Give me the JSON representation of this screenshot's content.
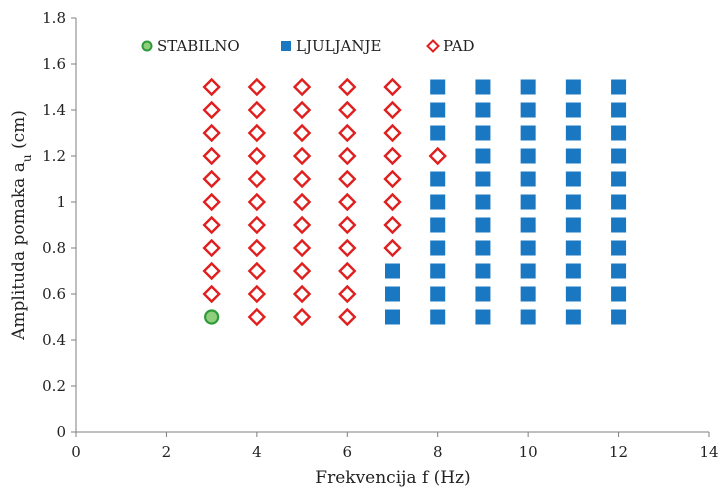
{
  "colors": {
    "stabilno": "#2e9a3a",
    "stabilno_fill": "#8fcf7c",
    "ljuljanje": "#1a78c2",
    "pad": "#e01f1f",
    "axis": "#7f7f7f",
    "text": "#222222"
  },
  "chart_data": {
    "type": "scatter",
    "title": "",
    "xlabel": "Frekvencija f (Hz)",
    "ylabel_main": "Amplituda pomaka a",
    "ylabel_sub": "u",
    "ylabel_units": " (cm)",
    "xlim": [
      0,
      14
    ],
    "ylim": [
      0,
      1.8
    ],
    "x_ticks": [
      0,
      2,
      4,
      6,
      8,
      10,
      12,
      14
    ],
    "x_tick_labels": [
      "0",
      "2",
      "4",
      "6",
      "8",
      "10",
      "12",
      "14"
    ],
    "y_ticks": [
      0,
      0.2,
      0.4,
      0.6,
      0.8,
      1.0,
      1.2,
      1.4,
      1.6,
      1.8
    ],
    "y_tick_labels": [
      "0",
      "0.2",
      "0.4",
      "0.6",
      "0.8",
      "1",
      "1.2",
      "1.4",
      "1.6",
      "1.8"
    ],
    "grid": false,
    "legend_position": "top",
    "series": [
      {
        "name": "STABILNO",
        "marker": "circle",
        "points": [
          [
            3,
            0.5
          ]
        ]
      },
      {
        "name": "LJULJANJE",
        "marker": "square",
        "points": [
          [
            7,
            0.5
          ],
          [
            7,
            0.6
          ],
          [
            7,
            0.7
          ],
          [
            8,
            0.5
          ],
          [
            8,
            0.6
          ],
          [
            8,
            0.7
          ],
          [
            8,
            0.8
          ],
          [
            8,
            0.9
          ],
          [
            8,
            1.0
          ],
          [
            8,
            1.1
          ],
          [
            8,
            1.3
          ],
          [
            8,
            1.4
          ],
          [
            8,
            1.5
          ],
          [
            9,
            0.5
          ],
          [
            9,
            0.6
          ],
          [
            9,
            0.7
          ],
          [
            9,
            0.8
          ],
          [
            9,
            0.9
          ],
          [
            9,
            1.0
          ],
          [
            9,
            1.1
          ],
          [
            9,
            1.2
          ],
          [
            9,
            1.3
          ],
          [
            9,
            1.4
          ],
          [
            9,
            1.5
          ],
          [
            10,
            0.5
          ],
          [
            10,
            0.6
          ],
          [
            10,
            0.7
          ],
          [
            10,
            0.8
          ],
          [
            10,
            0.9
          ],
          [
            10,
            1.0
          ],
          [
            10,
            1.1
          ],
          [
            10,
            1.2
          ],
          [
            10,
            1.3
          ],
          [
            10,
            1.4
          ],
          [
            10,
            1.5
          ],
          [
            11,
            0.5
          ],
          [
            11,
            0.6
          ],
          [
            11,
            0.7
          ],
          [
            11,
            0.8
          ],
          [
            11,
            0.9
          ],
          [
            11,
            1.0
          ],
          [
            11,
            1.1
          ],
          [
            11,
            1.2
          ],
          [
            11,
            1.3
          ],
          [
            11,
            1.4
          ],
          [
            11,
            1.5
          ],
          [
            12,
            0.5
          ],
          [
            12,
            0.6
          ],
          [
            12,
            0.7
          ],
          [
            12,
            0.8
          ],
          [
            12,
            0.9
          ],
          [
            12,
            1.0
          ],
          [
            12,
            1.1
          ],
          [
            12,
            1.2
          ],
          [
            12,
            1.3
          ],
          [
            12,
            1.4
          ],
          [
            12,
            1.5
          ]
        ]
      },
      {
        "name": "PAD",
        "marker": "diamond",
        "points": [
          [
            3,
            0.6
          ],
          [
            3,
            0.7
          ],
          [
            3,
            0.8
          ],
          [
            3,
            0.9
          ],
          [
            3,
            1.0
          ],
          [
            3,
            1.1
          ],
          [
            3,
            1.2
          ],
          [
            3,
            1.3
          ],
          [
            3,
            1.4
          ],
          [
            3,
            1.5
          ],
          [
            4,
            0.5
          ],
          [
            4,
            0.6
          ],
          [
            4,
            0.7
          ],
          [
            4,
            0.8
          ],
          [
            4,
            0.9
          ],
          [
            4,
            1.0
          ],
          [
            4,
            1.1
          ],
          [
            4,
            1.2
          ],
          [
            4,
            1.3
          ],
          [
            4,
            1.4
          ],
          [
            4,
            1.5
          ],
          [
            5,
            0.5
          ],
          [
            5,
            0.6
          ],
          [
            5,
            0.7
          ],
          [
            5,
            0.8
          ],
          [
            5,
            0.9
          ],
          [
            5,
            1.0
          ],
          [
            5,
            1.1
          ],
          [
            5,
            1.2
          ],
          [
            5,
            1.3
          ],
          [
            5,
            1.4
          ],
          [
            5,
            1.5
          ],
          [
            6,
            0.5
          ],
          [
            6,
            0.6
          ],
          [
            6,
            0.7
          ],
          [
            6,
            0.8
          ],
          [
            6,
            0.9
          ],
          [
            6,
            1.0
          ],
          [
            6,
            1.1
          ],
          [
            6,
            1.2
          ],
          [
            6,
            1.3
          ],
          [
            6,
            1.4
          ],
          [
            6,
            1.5
          ],
          [
            7,
            0.8
          ],
          [
            7,
            0.9
          ],
          [
            7,
            1.0
          ],
          [
            7,
            1.1
          ],
          [
            7,
            1.2
          ],
          [
            7,
            1.3
          ],
          [
            7,
            1.4
          ],
          [
            7,
            1.5
          ],
          [
            8,
            1.2
          ]
        ]
      }
    ]
  }
}
